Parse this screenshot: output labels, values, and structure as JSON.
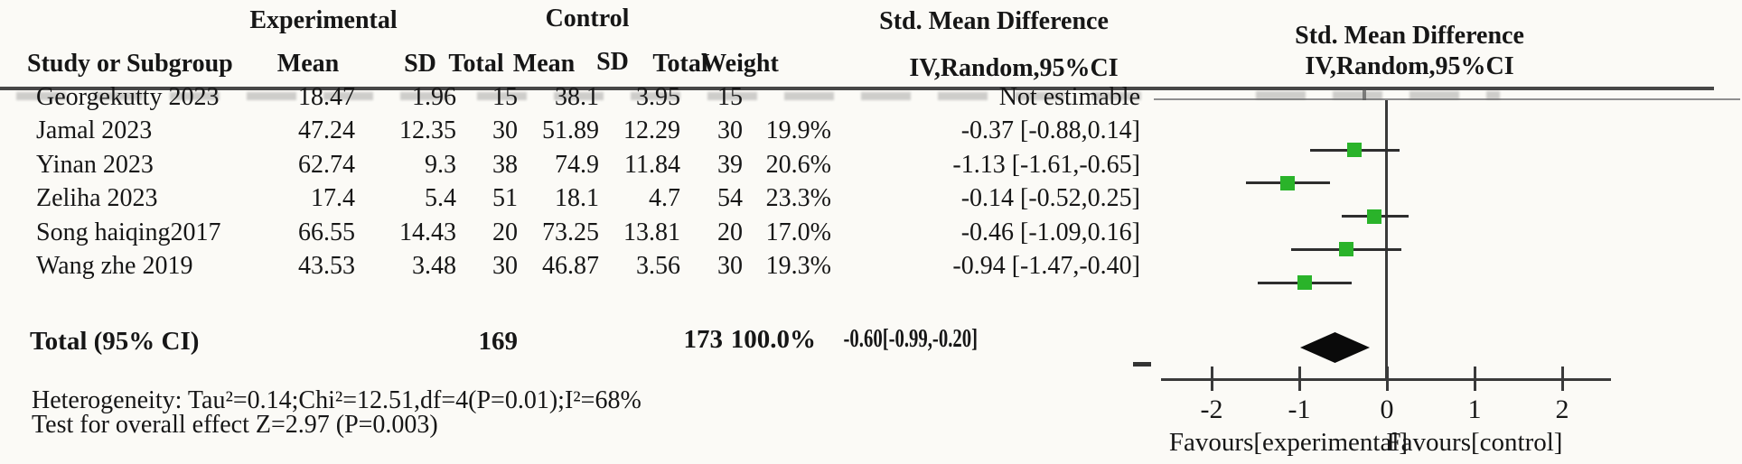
{
  "table": {
    "group_headers": {
      "experimental": "Experimental",
      "control": "Control"
    },
    "col_headers": {
      "study": "Study or Subgroup",
      "mean": "Mean",
      "sd": "SD",
      "total": "Total",
      "weight": "Weight"
    },
    "smd_header": {
      "line1": "Std. Mean Difference",
      "line2": "IV,Random,95%CI"
    },
    "studies": [
      {
        "name": "Georgekutty 2023",
        "exp_mean": "18.47",
        "exp_sd": "1.96",
        "exp_total": "15",
        "ctrl_mean": "38.1",
        "ctrl_sd": "3.95",
        "ctrl_total": "15",
        "weight": "",
        "smd_ci": "Not estimable"
      },
      {
        "name": "Jamal 2023",
        "exp_mean": "47.24",
        "exp_sd": "12.35",
        "exp_total": "30",
        "ctrl_mean": "51.89",
        "ctrl_sd": "12.29",
        "ctrl_total": "30",
        "weight": "19.9%",
        "smd_ci": "-0.37 [-0.88,0.14]"
      },
      {
        "name": "Yinan 2023",
        "exp_mean": "62.74",
        "exp_sd": "9.3",
        "exp_total": "38",
        "ctrl_mean": "74.9",
        "ctrl_sd": "11.84",
        "ctrl_total": "39",
        "weight": "20.6%",
        "smd_ci": "-1.13 [-1.61,-0.65]"
      },
      {
        "name": "Zeliha 2023",
        "exp_mean": "17.4",
        "exp_sd": "5.4",
        "exp_total": "51",
        "ctrl_mean": "18.1",
        "ctrl_sd": "4.7",
        "ctrl_total": "54",
        "weight": "23.3%",
        "smd_ci": "-0.14 [-0.52,0.25]"
      },
      {
        "name": "Song haiqing2017",
        "exp_mean": "66.55",
        "exp_sd": "14.43",
        "exp_total": "20",
        "ctrl_mean": "73.25",
        "ctrl_sd": "13.81",
        "ctrl_total": "20",
        "weight": "17.0%",
        "smd_ci": "-0.46 [-1.09,0.16]"
      },
      {
        "name": "Wang zhe 2019",
        "exp_mean": "43.53",
        "exp_sd": "3.48",
        "exp_total": "30",
        "ctrl_mean": "46.87",
        "ctrl_sd": "3.56",
        "ctrl_total": "30",
        "weight": "19.3%",
        "smd_ci": "-0.94 [-1.47,-0.40]"
      }
    ],
    "total_row": {
      "label": "Total (95% CI)",
      "exp_total": "169",
      "ctrl_total": "173",
      "weight": "100.0%",
      "smd_ci": "-0.60[-0.99,-0.20]"
    },
    "heterogeneity": "Heterogeneity: Tau²=0.14;Chi²=12.51,df=4(P=0.01);I²=68%",
    "overall_effect": "Test for overall effect Z=2.97 (P=0.003)"
  },
  "chart_data": {
    "type": "forest",
    "effect_measure": "Std. Mean Difference IV,Random,95%CI",
    "marker_color": "#2ab32a",
    "x_axis": {
      "ticks": [
        -2,
        -1,
        0,
        1,
        2
      ],
      "range_shown": [
        -2.6,
        2.6
      ],
      "label_left": "Favours[experimental]",
      "label_right": "Favours[control]"
    },
    "studies": [
      {
        "name": "Georgekutty 2023",
        "estimate": null,
        "ci_low": null,
        "ci_high": null,
        "weight_pct": null,
        "note": "Not estimable"
      },
      {
        "name": "Jamal 2023",
        "estimate": -0.37,
        "ci_low": -0.88,
        "ci_high": 0.14,
        "weight_pct": 19.9
      },
      {
        "name": "Yinan 2023",
        "estimate": -1.13,
        "ci_low": -1.61,
        "ci_high": -0.65,
        "weight_pct": 20.6
      },
      {
        "name": "Zeliha 2023",
        "estimate": -0.14,
        "ci_low": -0.52,
        "ci_high": 0.25,
        "weight_pct": 23.3
      },
      {
        "name": "Song haiqing2017",
        "estimate": -0.46,
        "ci_low": -1.09,
        "ci_high": 0.16,
        "weight_pct": 17.0
      },
      {
        "name": "Wang zhe 2019",
        "estimate": -0.94,
        "ci_low": -1.47,
        "ci_high": -0.4,
        "weight_pct": 19.3
      }
    ],
    "total": {
      "label": "Total (95% CI)",
      "estimate": -0.6,
      "ci_low": -0.99,
      "ci_high": -0.2,
      "weight_pct": 100.0
    },
    "heterogeneity": {
      "tau2": 0.14,
      "chi2": 12.51,
      "df": 4,
      "p": 0.01,
      "i2_pct": 68
    },
    "overall_effect": {
      "z": 2.97,
      "p": 0.003
    }
  }
}
